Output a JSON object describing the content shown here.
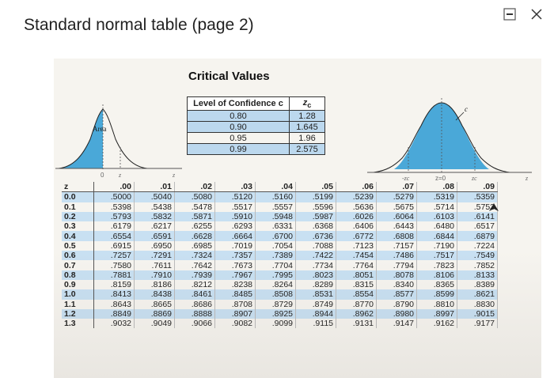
{
  "window": {
    "title": "Standard normal table (page 2)",
    "minimize_icon": "minimize-icon",
    "close_icon": "close-icon"
  },
  "critical_values": {
    "title": "Critical Values",
    "header_confidence": "Level of Confidence c",
    "header_zc": "z",
    "header_zc_sub": "c",
    "rows": [
      {
        "c": "0.80",
        "z": "1.28"
      },
      {
        "c": "0.90",
        "z": "1.645"
      },
      {
        "c": "0.95",
        "z": "1.96"
      },
      {
        "c": "0.99",
        "z": "2.575"
      }
    ]
  },
  "left_curve": {
    "area_label": "Area",
    "axis_label_1": "0",
    "axis_label_2": "z",
    "axis_end": "z"
  },
  "right_curve": {
    "label_left": "-zc",
    "label_center": "z=0",
    "label_right": "zc",
    "label_c": "c",
    "axis_end": "z"
  },
  "z_table": {
    "headers": [
      "z",
      ".00",
      ".01",
      ".02",
      ".03",
      ".04",
      ".05",
      ".06",
      ".07",
      ".08",
      ".09"
    ],
    "rows": [
      [
        "0.0",
        ".5000",
        ".5040",
        ".5080",
        ".5120",
        ".5160",
        ".5199",
        ".5239",
        ".5279",
        ".5319",
        ".5359"
      ],
      [
        "0.1",
        ".5398",
        ".5438",
        ".5478",
        ".5517",
        ".5557",
        ".5596",
        ".5636",
        ".5675",
        ".5714",
        ".5753"
      ],
      [
        "0.2",
        ".5793",
        ".5832",
        ".5871",
        ".5910",
        ".5948",
        ".5987",
        ".6026",
        ".6064",
        ".6103",
        ".6141"
      ],
      [
        "0.3",
        ".6179",
        ".6217",
        ".6255",
        ".6293",
        ".6331",
        ".6368",
        ".6406",
        ".6443",
        ".6480",
        ".6517"
      ],
      [
        "0.4",
        ".6554",
        ".6591",
        ".6628",
        ".6664",
        ".6700",
        ".6736",
        ".6772",
        ".6808",
        ".6844",
        ".6879"
      ],
      [
        "0.5",
        ".6915",
        ".6950",
        ".6985",
        ".7019",
        ".7054",
        ".7088",
        ".7123",
        ".7157",
        ".7190",
        ".7224"
      ],
      [
        "0.6",
        ".7257",
        ".7291",
        ".7324",
        ".7357",
        ".7389",
        ".7422",
        ".7454",
        ".7486",
        ".7517",
        ".7549"
      ],
      [
        "0.7",
        ".7580",
        ".7611",
        ".7642",
        ".7673",
        ".7704",
        ".7734",
        ".7764",
        ".7794",
        ".7823",
        ".7852"
      ],
      [
        "0.8",
        ".7881",
        ".7910",
        ".7939",
        ".7967",
        ".7995",
        ".8023",
        ".8051",
        ".8078",
        ".8106",
        ".8133"
      ],
      [
        "0.9",
        ".8159",
        ".8186",
        ".8212",
        ".8238",
        ".8264",
        ".8289",
        ".8315",
        ".8340",
        ".8365",
        ".8389"
      ],
      [
        "1.0",
        ".8413",
        ".8438",
        ".8461",
        ".8485",
        ".8508",
        ".8531",
        ".8554",
        ".8577",
        ".8599",
        ".8621"
      ],
      [
        "1.1",
        ".8643",
        ".8665",
        ".8686",
        ".8708",
        ".8729",
        ".8749",
        ".8770",
        ".8790",
        ".8810",
        ".8830"
      ],
      [
        "1.2",
        ".8849",
        ".8869",
        ".8888",
        ".8907",
        ".8925",
        ".8944",
        ".8962",
        ".8980",
        ".8997",
        ".9015"
      ],
      [
        "1.3",
        ".9032",
        ".9049",
        ".9066",
        ".9082",
        ".9099",
        ".9115",
        ".9131",
        ".9147",
        ".9162",
        ".9177"
      ]
    ]
  },
  "colors": {
    "curve_fill": "#4aa8d8",
    "row_shade": "#c8e0f2",
    "cv_shade": "#bcd8ee"
  }
}
